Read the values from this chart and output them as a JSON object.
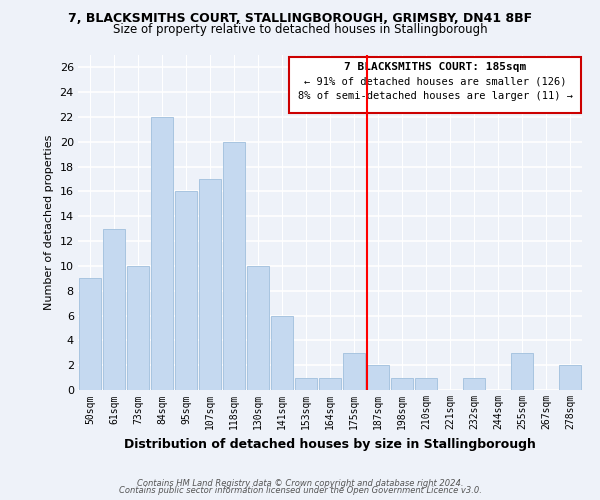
{
  "title1": "7, BLACKSMITHS COURT, STALLINGBOROUGH, GRIMSBY, DN41 8BF",
  "title2": "Size of property relative to detached houses in Stallingborough",
  "xlabel": "Distribution of detached houses by size in Stallingborough",
  "ylabel": "Number of detached properties",
  "bin_labels": [
    "50sqm",
    "61sqm",
    "73sqm",
    "84sqm",
    "95sqm",
    "107sqm",
    "118sqm",
    "130sqm",
    "141sqm",
    "153sqm",
    "164sqm",
    "175sqm",
    "187sqm",
    "198sqm",
    "210sqm",
    "221sqm",
    "232sqm",
    "244sqm",
    "255sqm",
    "267sqm",
    "278sqm"
  ],
  "bar_heights": [
    9,
    13,
    10,
    22,
    16,
    17,
    20,
    10,
    6,
    1,
    1,
    3,
    2,
    1,
    1,
    0,
    1,
    0,
    3,
    0,
    2
  ],
  "bar_color": "#c5d9f0",
  "bar_edge_color": "#a8c4e0",
  "vline_color": "red",
  "annotation_title": "7 BLACKSMITHS COURT: 185sqm",
  "annotation_line1": "← 91% of detached houses are smaller (126)",
  "annotation_line2": "8% of semi-detached houses are larger (11) →",
  "footer1": "Contains HM Land Registry data © Crown copyright and database right 2024.",
  "footer2": "Contains public sector information licensed under the Open Government Licence v3.0.",
  "ylim": [
    0,
    27
  ],
  "yticks": [
    0,
    2,
    4,
    6,
    8,
    10,
    12,
    14,
    16,
    18,
    20,
    22,
    24,
    26
  ],
  "background_color": "#eef2f9",
  "grid_color": "#ffffff",
  "title1_fontsize": 9,
  "title2_fontsize": 8.5,
  "xlabel_fontsize": 9,
  "ylabel_fontsize": 8
}
